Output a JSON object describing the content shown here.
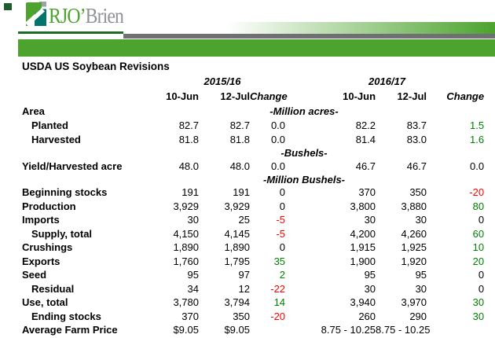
{
  "brand": {
    "name_primary": "RJO’",
    "name_secondary": "Brien",
    "logo_icon": "folded-page-icon"
  },
  "title": "USDA US Soybean Revisions",
  "table": {
    "group_headers": [
      "2015/16",
      "2016/17"
    ],
    "col_headers": [
      "10-Jun",
      "12-Jul",
      "Change",
      "10-Jun",
      "12-Jul",
      "Change"
    ],
    "rows": [
      {
        "type": "section",
        "label": "Area",
        "unit": "-Million acres-"
      },
      {
        "type": "data",
        "label": "Planted",
        "indent": true,
        "values": [
          "82.7",
          "82.7",
          "0.0",
          "82.2",
          "83.7",
          "1.5"
        ],
        "styles": [
          "",
          "",
          "",
          "",
          "",
          "pos"
        ]
      },
      {
        "type": "data",
        "label": "Harvested",
        "indent": true,
        "values": [
          "81.8",
          "81.8",
          "0.0",
          "81.4",
          "83.0",
          "1.6"
        ],
        "styles": [
          "",
          "",
          "",
          "",
          "",
          "pos"
        ]
      },
      {
        "type": "unit",
        "unit": "-Bushels-"
      },
      {
        "type": "data",
        "label": "Yield/Harvested acre",
        "indent": false,
        "values": [
          "48.0",
          "48.0",
          "0.0",
          "46.7",
          "46.7",
          "0.0"
        ],
        "styles": [
          "",
          "",
          "",
          "",
          "",
          ""
        ]
      },
      {
        "type": "unit",
        "unit": "-Million Bushels-"
      },
      {
        "type": "data",
        "label": "Beginning stocks",
        "indent": false,
        "values": [
          "191",
          "191",
          "0",
          "370",
          "350",
          "-20"
        ],
        "styles": [
          "",
          "",
          "",
          "",
          "",
          "neg"
        ]
      },
      {
        "type": "data",
        "label": "Production",
        "indent": false,
        "values": [
          "3,929",
          "3,929",
          "0",
          "3,800",
          "3,880",
          "80"
        ],
        "styles": [
          "",
          "",
          "",
          "",
          "",
          "pos"
        ]
      },
      {
        "type": "data",
        "label": "Imports",
        "indent": false,
        "values": [
          "30",
          "25",
          "-5",
          "30",
          "30",
          "0"
        ],
        "styles": [
          "",
          "",
          "neg",
          "",
          "",
          ""
        ]
      },
      {
        "type": "data",
        "label": "Supply, total",
        "indent": true,
        "values": [
          "4,150",
          "4,145",
          "-5",
          "4,200",
          "4,260",
          "60"
        ],
        "styles": [
          "",
          "",
          "neg",
          "",
          "",
          "pos"
        ]
      },
      {
        "type": "data",
        "label": "Crushings",
        "indent": false,
        "values": [
          "1,890",
          "1,890",
          "0",
          "1,915",
          "1,925",
          "10"
        ],
        "styles": [
          "",
          "",
          "",
          "",
          "",
          "pos"
        ]
      },
      {
        "type": "data",
        "label": "Exports",
        "indent": false,
        "values": [
          "1,760",
          "1,795",
          "35",
          "1,900",
          "1,920",
          "20"
        ],
        "styles": [
          "",
          "",
          "pos",
          "",
          "",
          "pos"
        ]
      },
      {
        "type": "data",
        "label": "Seed",
        "indent": false,
        "values": [
          "95",
          "97",
          "2",
          "95",
          "95",
          "0"
        ],
        "styles": [
          "",
          "",
          "pos",
          "",
          "",
          ""
        ]
      },
      {
        "type": "data",
        "label": "Residual",
        "indent": true,
        "values": [
          "34",
          "12",
          "-22",
          "30",
          "30",
          "0"
        ],
        "styles": [
          "",
          "",
          "neg",
          "",
          "",
          ""
        ]
      },
      {
        "type": "data",
        "label": "Use, total",
        "indent": false,
        "values": [
          "3,780",
          "3,794",
          "14",
          "3,940",
          "3,970",
          "30"
        ],
        "styles": [
          "",
          "",
          "pos",
          "",
          "",
          "pos"
        ]
      },
      {
        "type": "data",
        "label": "Ending stocks",
        "indent": true,
        "values": [
          "370",
          "350",
          "-20",
          "260",
          "290",
          "30"
        ],
        "styles": [
          "",
          "",
          "neg",
          "",
          "",
          "pos"
        ]
      },
      {
        "type": "data",
        "label": "Average Farm Price",
        "indent": false,
        "values": [
          "$9.05",
          "$9.05",
          "",
          "8.75 - 10.25",
          "8.75 - 10.25",
          ""
        ],
        "styles": [
          "",
          "",
          "",
          "",
          "",
          ""
        ]
      }
    ]
  },
  "colors": {
    "brand_green": "#4CA32E",
    "brand_teal": "#00736B",
    "brand_gray": "#8F9194",
    "icon_gray": "#9FA1A3",
    "bar_gray": "#6F7072",
    "rule_green": "#1E6B27",
    "corner_green": "#1C5C2E",
    "positive": "#008000",
    "negative": "#FF0000"
  }
}
